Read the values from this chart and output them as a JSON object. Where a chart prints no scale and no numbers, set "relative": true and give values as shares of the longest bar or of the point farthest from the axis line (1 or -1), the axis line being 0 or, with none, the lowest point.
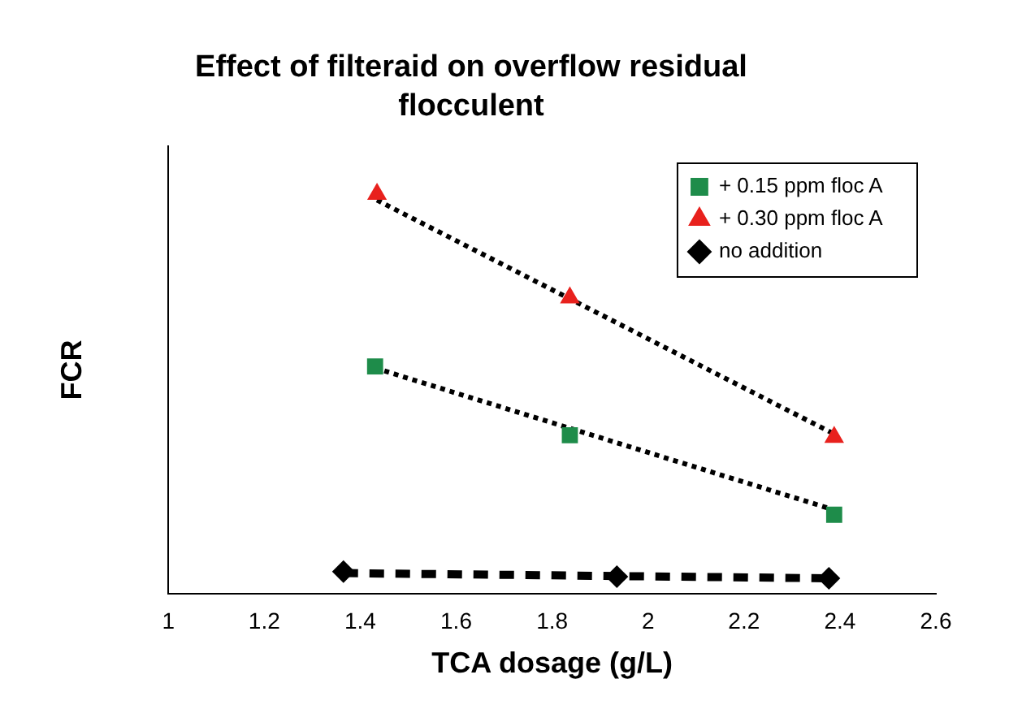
{
  "chart_data": {
    "type": "scatter",
    "title": "Effect of filteraid on overflow residual flocculent",
    "xlabel": "TCA dosage (g/L)",
    "ylabel": "FCR",
    "relative": true,
    "xlim": [
      1,
      2.6
    ],
    "xticks": [
      1,
      1.2,
      1.4,
      1.6,
      1.8,
      2,
      2.2,
      2.4,
      2.6
    ],
    "grid": false,
    "legend": "top right",
    "series": [
      {
        "name": "+ 0.15 ppm floc A",
        "type": "scatter",
        "marker": "square",
        "color": "#1e8c4a",
        "x": [
          1.431,
          1.837,
          2.388
        ],
        "values": [
          0.569,
          0.397,
          0.198
        ]
      },
      {
        "name": "+ 0.30 ppm floc A",
        "type": "scatter",
        "marker": "triangle",
        "color": "#e8211d",
        "x": [
          1.435,
          1.837,
          2.388
        ],
        "values": [
          1,
          0.741,
          0.392
        ]
      },
      {
        "name": "no addition",
        "type": "scatter",
        "marker": "diamond",
        "color": "#000000",
        "x": [
          1.365,
          1.935,
          2.377
        ],
        "values": [
          0.056,
          0.043,
          0.039
        ]
      },
      {
        "type": "line",
        "line_style": "dotted",
        "color": "#000000",
        "x": [
          1.435,
          2.388
        ],
        "values": [
          0.985,
          0.4
        ]
      },
      {
        "type": "line",
        "line_style": "dotted",
        "color": "#000000",
        "x": [
          1.431,
          2.388
        ],
        "values": [
          0.565,
          0.21
        ]
      },
      {
        "type": "line",
        "line_style": "dashed",
        "color": "#000000",
        "x": [
          1.365,
          2.377
        ],
        "values": [
          0.052,
          0.039
        ]
      }
    ]
  }
}
